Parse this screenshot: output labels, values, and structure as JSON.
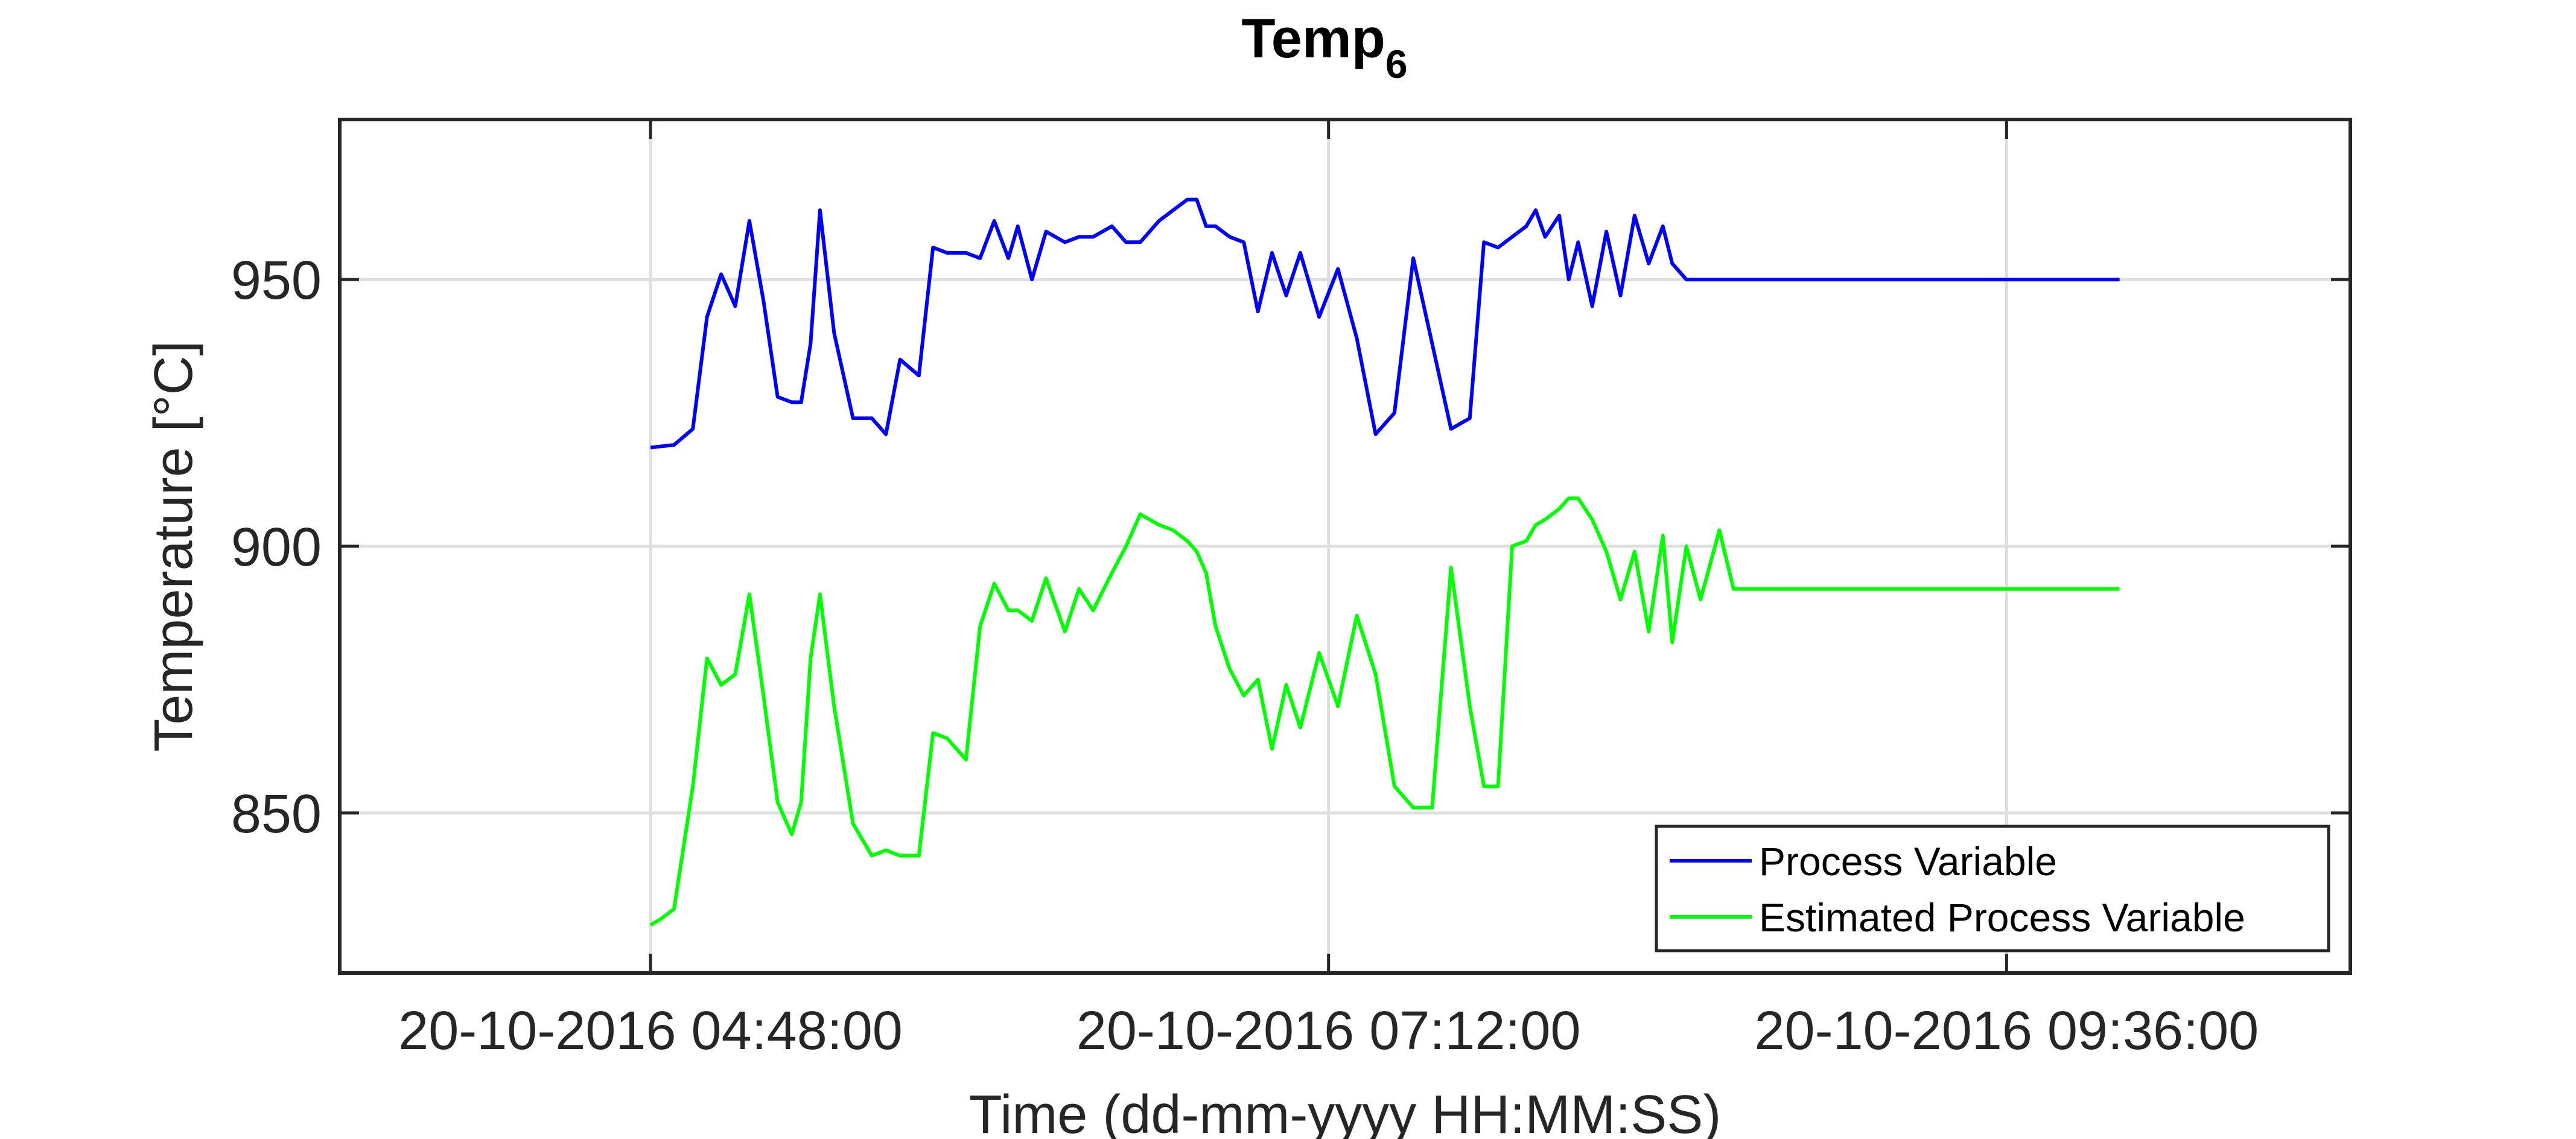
{
  "chart_data": {
    "type": "line",
    "title": "Temp",
    "title_subscript": "6",
    "xlabel": "Time (dd-mm-yyyy HH:MM:SS)",
    "ylabel": "Temperature [°C]",
    "ylim": [
      820,
      980
    ],
    "yticks": [
      850,
      900,
      950
    ],
    "xlim": [
      "20-10-2016 03:42:00",
      "20-10-2016 10:49:00"
    ],
    "xticks": [
      "20-10-2016 04:48:00",
      "20-10-2016 07:12:00",
      "20-10-2016 09:36:00"
    ],
    "grid": true,
    "legend_position": "bottom-right",
    "colors": {
      "process_variable": "#0000ff",
      "estimated_process_variable": "#00ff00",
      "axes": "#262626",
      "grid": "#dfdfdf"
    },
    "series": [
      {
        "name": "Process Variable",
        "x": [
          "20-10-2016 04:48:00",
          "20-10-2016 04:50:00",
          "20-10-2016 04:53:00",
          "20-10-2016 04:57:00",
          "20-10-2016 05:00:00",
          "20-10-2016 05:03:00",
          "20-10-2016 05:06:00",
          "20-10-2016 05:09:00",
          "20-10-2016 05:12:00",
          "20-10-2016 05:15:00",
          "20-10-2016 05:18:00",
          "20-10-2016 05:20:00",
          "20-10-2016 05:22:00",
          "20-10-2016 05:24:00",
          "20-10-2016 05:27:00",
          "20-10-2016 05:31:00",
          "20-10-2016 05:35:00",
          "20-10-2016 05:38:00",
          "20-10-2016 05:41:00",
          "20-10-2016 05:45:00",
          "20-10-2016 05:48:00",
          "20-10-2016 05:51:00",
          "20-10-2016 05:55:00",
          "20-10-2016 05:58:00",
          "20-10-2016 06:01:00",
          "20-10-2016 06:04:00",
          "20-10-2016 06:06:00",
          "20-10-2016 06:09:00",
          "20-10-2016 06:12:00",
          "20-10-2016 06:16:00",
          "20-10-2016 06:19:00",
          "20-10-2016 06:22:00",
          "20-10-2016 06:26:00",
          "20-10-2016 06:29:00",
          "20-10-2016 06:32:00",
          "20-10-2016 06:36:00",
          "20-10-2016 06:39:00",
          "20-10-2016 06:42:00",
          "20-10-2016 06:44:00",
          "20-10-2016 06:46:00",
          "20-10-2016 06:48:00",
          "20-10-2016 06:51:00",
          "20-10-2016 06:54:00",
          "20-10-2016 06:57:00",
          "20-10-2016 07:00:00",
          "20-10-2016 07:03:00",
          "20-10-2016 07:06:00",
          "20-10-2016 07:10:00",
          "20-10-2016 07:14:00",
          "20-10-2016 07:18:00",
          "20-10-2016 07:22:00",
          "20-10-2016 07:26:00",
          "20-10-2016 07:30:00",
          "20-10-2016 07:34:00",
          "20-10-2016 07:38:00",
          "20-10-2016 07:42:00",
          "20-10-2016 07:45:00",
          "20-10-2016 07:48:00",
          "20-10-2016 07:51:00",
          "20-10-2016 07:54:00",
          "20-10-2016 07:56:00",
          "20-10-2016 07:58:00",
          "20-10-2016 08:01:00",
          "20-10-2016 08:03:00",
          "20-10-2016 08:05:00",
          "20-10-2016 08:08:00",
          "20-10-2016 08:11:00",
          "20-10-2016 08:14:00",
          "20-10-2016 08:17:00",
          "20-10-2016 08:20:00",
          "20-10-2016 08:23:00",
          "20-10-2016 08:25:00",
          "20-10-2016 08:28:00",
          "20-10-2016 08:31:00",
          "20-10-2016 08:35:00",
          "20-10-2016 08:38:00",
          "20-10-2016 08:42:00",
          "20-10-2016 08:45:00",
          "20-10-2016 08:49:00",
          "20-10-2016 08:53:00",
          "20-10-2016 08:57:00",
          "20-10-2016 09:00:00",
          "20-10-2016 09:04:00",
          "20-10-2016 09:07:00",
          "20-10-2016 09:10:00",
          "20-10-2016 09:13:00",
          "20-10-2016 09:16:00",
          "20-10-2016 09:20:00",
          "20-10-2016 09:24:00",
          "20-10-2016 09:27:00",
          "20-10-2016 09:30:00",
          "20-10-2016 09:33:00",
          "20-10-2016 09:35:00",
          "20-10-2016 09:38:00",
          "20-10-2016 09:42:00",
          "20-10-2016 09:45:00",
          "20-10-2016 09:48:00",
          "20-10-2016 09:51:00",
          "20-10-2016 09:54:00",
          "20-10-2016 09:56:00",
          "20-10-2016 09:58:00",
          "20-10-2016 10:00:00"
        ],
        "y": [
          918.5,
          918.7,
          919.0,
          922.0,
          943.0,
          951.0,
          945.0,
          961.0,
          946.0,
          928.0,
          927.0,
          927.0,
          938.0,
          963.0,
          940.0,
          924.0,
          924.0,
          921.0,
          935.0,
          932.0,
          956.0,
          955.0,
          955.0,
          954.0,
          961.0,
          954.0,
          960.0,
          950.0,
          959.0,
          957.0,
          958.0,
          958.0,
          960.0,
          957.0,
          957.0,
          961.0,
          963.0,
          965.0,
          965.0,
          960.0,
          960.0,
          958.0,
          957.0,
          944.0,
          955.0,
          947.0,
          955.0,
          943.0,
          952.0,
          939.0,
          921.0,
          925.0,
          954.0,
          938.0,
          922.0,
          924.0,
          957.0,
          956.0,
          958.0,
          960.0,
          963.0,
          958.0,
          962.0,
          950.0,
          957.0,
          945.0,
          959.0,
          947.0,
          962.0,
          953.0,
          960.0,
          953.0,
          950.0,
          950.0,
          950.0,
          950.0,
          950.0,
          950.0,
          950.0,
          950.0,
          950.0,
          950.0,
          950.0,
          950.0,
          950.0,
          950.0,
          950.0,
          950.0,
          950.0,
          950.0,
          950.0,
          950.0,
          950.0,
          950.0,
          950.0,
          950.0,
          950.0,
          950.0,
          950.0,
          950.0,
          950.0,
          950.0
        ]
      },
      {
        "name": "Estimated Process Variable",
        "x": [
          "20-10-2016 04:48:00",
          "20-10-2016 04:50:00",
          "20-10-2016 04:53:00",
          "20-10-2016 04:57:00",
          "20-10-2016 05:00:00",
          "20-10-2016 05:03:00",
          "20-10-2016 05:06:00",
          "20-10-2016 05:09:00",
          "20-10-2016 05:12:00",
          "20-10-2016 05:15:00",
          "20-10-2016 05:18:00",
          "20-10-2016 05:20:00",
          "20-10-2016 05:22:00",
          "20-10-2016 05:24:00",
          "20-10-2016 05:27:00",
          "20-10-2016 05:31:00",
          "20-10-2016 05:35:00",
          "20-10-2016 05:38:00",
          "20-10-2016 05:41:00",
          "20-10-2016 05:45:00",
          "20-10-2016 05:48:00",
          "20-10-2016 05:51:00",
          "20-10-2016 05:55:00",
          "20-10-2016 05:58:00",
          "20-10-2016 06:01:00",
          "20-10-2016 06:04:00",
          "20-10-2016 06:06:00",
          "20-10-2016 06:09:00",
          "20-10-2016 06:12:00",
          "20-10-2016 06:16:00",
          "20-10-2016 06:19:00",
          "20-10-2016 06:22:00",
          "20-10-2016 06:26:00",
          "20-10-2016 06:29:00",
          "20-10-2016 06:32:00",
          "20-10-2016 06:36:00",
          "20-10-2016 06:39:00",
          "20-10-2016 06:42:00",
          "20-10-2016 06:44:00",
          "20-10-2016 06:46:00",
          "20-10-2016 06:48:00",
          "20-10-2016 06:51:00",
          "20-10-2016 06:54:00",
          "20-10-2016 06:57:00",
          "20-10-2016 07:00:00",
          "20-10-2016 07:03:00",
          "20-10-2016 07:06:00",
          "20-10-2016 07:10:00",
          "20-10-2016 07:14:00",
          "20-10-2016 07:18:00",
          "20-10-2016 07:22:00",
          "20-10-2016 07:26:00",
          "20-10-2016 07:30:00",
          "20-10-2016 07:34:00",
          "20-10-2016 07:38:00",
          "20-10-2016 07:42:00",
          "20-10-2016 07:45:00",
          "20-10-2016 07:48:00",
          "20-10-2016 07:51:00",
          "20-10-2016 07:54:00",
          "20-10-2016 07:56:00",
          "20-10-2016 07:58:00",
          "20-10-2016 08:01:00",
          "20-10-2016 08:03:00",
          "20-10-2016 08:05:00",
          "20-10-2016 08:08:00",
          "20-10-2016 08:11:00",
          "20-10-2016 08:14:00",
          "20-10-2016 08:17:00",
          "20-10-2016 08:20:00",
          "20-10-2016 08:23:00",
          "20-10-2016 08:25:00",
          "20-10-2016 08:28:00",
          "20-10-2016 08:31:00",
          "20-10-2016 08:35:00",
          "20-10-2016 08:38:00",
          "20-10-2016 08:42:00",
          "20-10-2016 08:45:00",
          "20-10-2016 08:49:00",
          "20-10-2016 08:53:00",
          "20-10-2016 08:57:00",
          "20-10-2016 09:00:00",
          "20-10-2016 09:04:00",
          "20-10-2016 09:07:00",
          "20-10-2016 09:10:00",
          "20-10-2016 09:13:00",
          "20-10-2016 09:16:00",
          "20-10-2016 09:20:00",
          "20-10-2016 09:24:00",
          "20-10-2016 09:27:00",
          "20-10-2016 09:30:00",
          "20-10-2016 09:33:00",
          "20-10-2016 09:35:00",
          "20-10-2016 09:38:00",
          "20-10-2016 09:42:00",
          "20-10-2016 09:45:00",
          "20-10-2016 09:48:00",
          "20-10-2016 09:51:00",
          "20-10-2016 09:54:00",
          "20-10-2016 09:56:00",
          "20-10-2016 09:58:00",
          "20-10-2016 10:00:00"
        ],
        "y": [
          829.0,
          830.0,
          832.0,
          855.0,
          879.0,
          874.0,
          876.0,
          891.0,
          872.0,
          852.0,
          846.0,
          852.0,
          879.0,
          891.0,
          870.0,
          848.0,
          842.0,
          843.0,
          842.0,
          842.0,
          865.0,
          864.0,
          860.0,
          885.0,
          893.0,
          888.0,
          888.0,
          886.0,
          894.0,
          884.0,
          892.0,
          888.0,
          895.0,
          900.0,
          906.0,
          904.0,
          903.0,
          901.0,
          899.0,
          895.0,
          885.0,
          877.0,
          872.0,
          875.0,
          862.0,
          874.0,
          866.0,
          880.0,
          870.0,
          887.0,
          876.0,
          855.0,
          851.0,
          851.0,
          896.0,
          870.0,
          855.0,
          855.0,
          900.0,
          901.0,
          904.0,
          905.0,
          907.0,
          909.0,
          909.0,
          905.0,
          899.0,
          890.0,
          899.0,
          884.0,
          902.0,
          882.0,
          900.0,
          890.0,
          903.0,
          892.0,
          892.0,
          892.0,
          892.0,
          892.0,
          892.0,
          892.0,
          892.0,
          892.0,
          892.0,
          892.0,
          892.0,
          892.0,
          892.0,
          892.0,
          892.0,
          892.0,
          892.0,
          892.0,
          892.0,
          892.0,
          892.0,
          892.0,
          892.0,
          892.0,
          892.0,
          892.0
        ]
      }
    ]
  }
}
